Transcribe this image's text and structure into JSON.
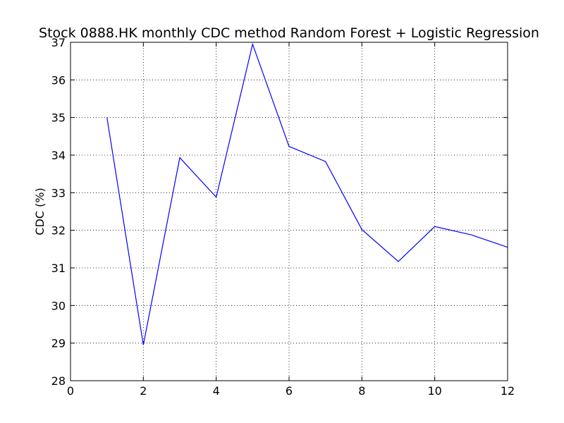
{
  "chart_data": {
    "type": "line",
    "title": "Stock 0888.HK monthly CDC method Random Forest + Logistic Regression",
    "xlabel": "",
    "ylabel": "CDC (%)",
    "xlim": [
      0,
      12
    ],
    "ylim": [
      28,
      37
    ],
    "xticks": [
      0,
      2,
      4,
      6,
      8,
      10,
      12
    ],
    "yticks": [
      28,
      29,
      30,
      31,
      32,
      33,
      34,
      35,
      36,
      37
    ],
    "grid": true,
    "line_color": "#0000ff",
    "series": [
      {
        "x": [
          1,
          2,
          3,
          4,
          5,
          6,
          7,
          8,
          9,
          10,
          11,
          12
        ],
        "y": [
          35.0,
          28.95,
          33.93,
          32.88,
          36.95,
          34.23,
          33.83,
          32.02,
          31.17,
          32.1,
          31.88,
          31.55
        ]
      }
    ]
  }
}
